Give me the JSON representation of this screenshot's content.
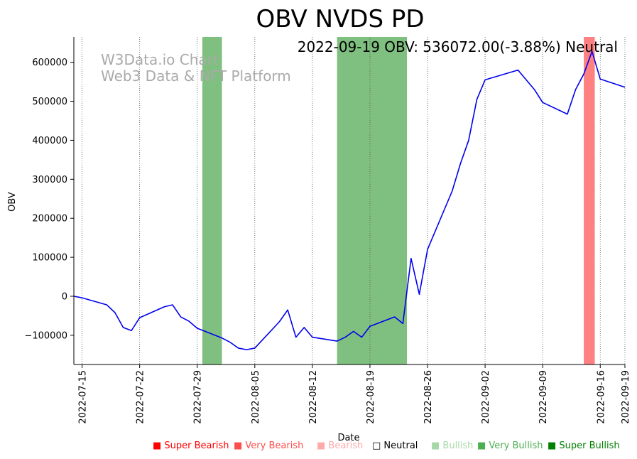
{
  "chart_data": {
    "type": "line",
    "title": "OBV NVDS PD",
    "xlabel": "Date",
    "ylabel": "OBV",
    "info_text": "2022-09-19 OBV: 536072.00(-3.88%) Neutral",
    "watermark": [
      "W3Data.io Chart",
      "Web3 Data & NFT Platform"
    ],
    "xlim": [
      "2022-07-14",
      "2022-09-19"
    ],
    "ylim": [
      -175000,
      665000
    ],
    "x_ticks": [
      "2022-07-15",
      "2022-07-22",
      "2022-07-29",
      "2022-08-05",
      "2022-08-12",
      "2022-08-19",
      "2022-08-26",
      "2022-09-02",
      "2022-09-09",
      "2022-09-16",
      "2022-09-19"
    ],
    "y_ticks": [
      -100000,
      0,
      100000,
      200000,
      300000,
      400000,
      500000,
      600000
    ],
    "y_tick_labels": [
      "−100000",
      "0",
      "100000",
      "200000",
      "300000",
      "400000",
      "500000",
      "600000"
    ],
    "series": [
      {
        "name": "OBV",
        "color": "#0000ee",
        "x": [
          "2022-07-14",
          "2022-07-15",
          "2022-07-18",
          "2022-07-19",
          "2022-07-20",
          "2022-07-21",
          "2022-07-22",
          "2022-07-25",
          "2022-07-26",
          "2022-07-27",
          "2022-07-28",
          "2022-07-29",
          "2022-08-01",
          "2022-08-02",
          "2022-08-03",
          "2022-08-04",
          "2022-08-05",
          "2022-08-08",
          "2022-08-09",
          "2022-08-10",
          "2022-08-11",
          "2022-08-12",
          "2022-08-15",
          "2022-08-16",
          "2022-08-17",
          "2022-08-18",
          "2022-08-19",
          "2022-08-22",
          "2022-08-23",
          "2022-08-24",
          "2022-08-25",
          "2022-08-26",
          "2022-08-29",
          "2022-08-30",
          "2022-08-31",
          "2022-09-01",
          "2022-09-02",
          "2022-09-06",
          "2022-09-08",
          "2022-09-09",
          "2022-09-12",
          "2022-09-13",
          "2022-09-14",
          "2022-09-15",
          "2022-09-16",
          "2022-09-19"
        ],
        "values": [
          0,
          -4000,
          -22000,
          -42000,
          -80000,
          -88000,
          -55000,
          -27000,
          -22000,
          -53000,
          -64000,
          -82000,
          -107000,
          -118000,
          -133000,
          -137000,
          -133000,
          -65000,
          -35000,
          -105000,
          -80000,
          -105000,
          -115000,
          -105000,
          -90000,
          -105000,
          -77000,
          -53000,
          -70000,
          97000,
          5000,
          120000,
          270000,
          340000,
          400000,
          505000,
          555000,
          580000,
          530000,
          497000,
          467000,
          530000,
          570000,
          628000,
          557000,
          536072
        ]
      }
    ],
    "bands": [
      {
        "start": "2022-07-29T15:00",
        "end": "2022-08-01",
        "signal": "Very Bullish",
        "color": "#7fbf7f"
      },
      {
        "start": "2022-08-15",
        "end": "2022-08-23T12:00",
        "signal": "Very Bullish",
        "color": "#7fbf7f"
      },
      {
        "start": "2022-09-14",
        "end": "2022-09-15T08:00",
        "signal": "Very Bearish",
        "color": "#ff8080"
      }
    ],
    "legend": [
      {
        "symbol": "■",
        "label": "Super Bearish",
        "color": "#ff0000"
      },
      {
        "symbol": "■",
        "label": "Very Bearish",
        "color": "#ff4c4c"
      },
      {
        "symbol": "■",
        "label": "Bearish",
        "color": "#ffaaaa"
      },
      {
        "symbol": "□",
        "label": "Neutral",
        "color": "#000000"
      },
      {
        "symbol": "■",
        "label": "Bullish",
        "color": "#a8d8a8"
      },
      {
        "symbol": "■",
        "label": "Very Bullish",
        "color": "#4caf50"
      },
      {
        "symbol": "■",
        "label": "Super Bullish",
        "color": "#008000"
      }
    ]
  }
}
